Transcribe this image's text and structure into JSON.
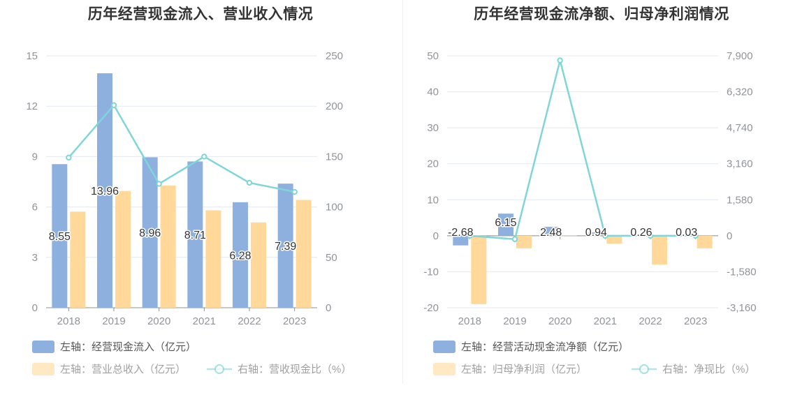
{
  "chart_data": [
    {
      "type": "bar",
      "title": "历年经营现金流入、营业收入情况",
      "categories": [
        "2018",
        "2019",
        "2020",
        "2021",
        "2022",
        "2023"
      ],
      "left_axis": {
        "range": [
          0,
          15
        ],
        "ticks": [
          "0",
          "3",
          "6",
          "9",
          "12",
          "15"
        ]
      },
      "right_axis": {
        "range": [
          0,
          250
        ],
        "ticks": [
          "0",
          "50",
          "100",
          "150",
          "200",
          "250"
        ]
      },
      "series": [
        {
          "name": "左轴：经营现金流入（亿元）",
          "kind": "bar",
          "axis": "left",
          "color": "#8eb0de",
          "values": [
            8.55,
            13.96,
            8.96,
            8.71,
            6.28,
            7.39
          ],
          "labels": [
            "8.55",
            "13.96",
            "8.96",
            "8.71",
            "6.28",
            "7.39"
          ]
        },
        {
          "name": "左轴：营业总收入（亿元）",
          "kind": "bar",
          "axis": "left",
          "color": "#ffd89a",
          "values": [
            5.72,
            6.95,
            7.28,
            5.8,
            5.08,
            6.42
          ]
        },
        {
          "name": "右轴：营收现金比（%）",
          "kind": "line",
          "axis": "right",
          "color": "#7fd6d8",
          "values": [
            149,
            201,
            123,
            150,
            124,
            115
          ]
        }
      ],
      "grid": true,
      "legend": "bottom-left"
    },
    {
      "type": "bar",
      "title": "历年经营现金流净额、归母净利润情况",
      "categories": [
        "2018",
        "2019",
        "2020",
        "2021",
        "2022",
        "2023"
      ],
      "left_axis": {
        "range": [
          -20,
          50
        ],
        "ticks": [
          "-20",
          "-10",
          "0",
          "10",
          "20",
          "30",
          "40",
          "50"
        ]
      },
      "right_axis": {
        "range": [
          -3160,
          7900
        ],
        "ticks": [
          "-3,160",
          "-1,580",
          "0",
          "1,580",
          "3,160",
          "4,740",
          "6,320",
          "7,900"
        ]
      },
      "series": [
        {
          "name": "左轴：经营活动现金流净额（亿元）",
          "kind": "bar",
          "axis": "left",
          "color": "#8eb0de",
          "values": [
            -2.68,
            6.15,
            2.48,
            0.94,
            0.26,
            0.03
          ],
          "labels": [
            "-2.68",
            "6.15",
            "2.48",
            "0.94",
            "0.26",
            "0.03"
          ]
        },
        {
          "name": "左轴：归母净利润（亿元）",
          "kind": "bar",
          "axis": "left",
          "color": "#ffd89a",
          "values": [
            -19.0,
            -3.5,
            0.05,
            -2.2,
            -8.0,
            -3.5
          ]
        },
        {
          "name": "右轴：净现比（%）",
          "kind": "line",
          "axis": "right",
          "color": "#7fd6d8",
          "values": [
            0,
            -150,
            7700,
            0,
            0,
            0
          ]
        }
      ],
      "grid": true,
      "legend": "bottom-left"
    }
  ]
}
